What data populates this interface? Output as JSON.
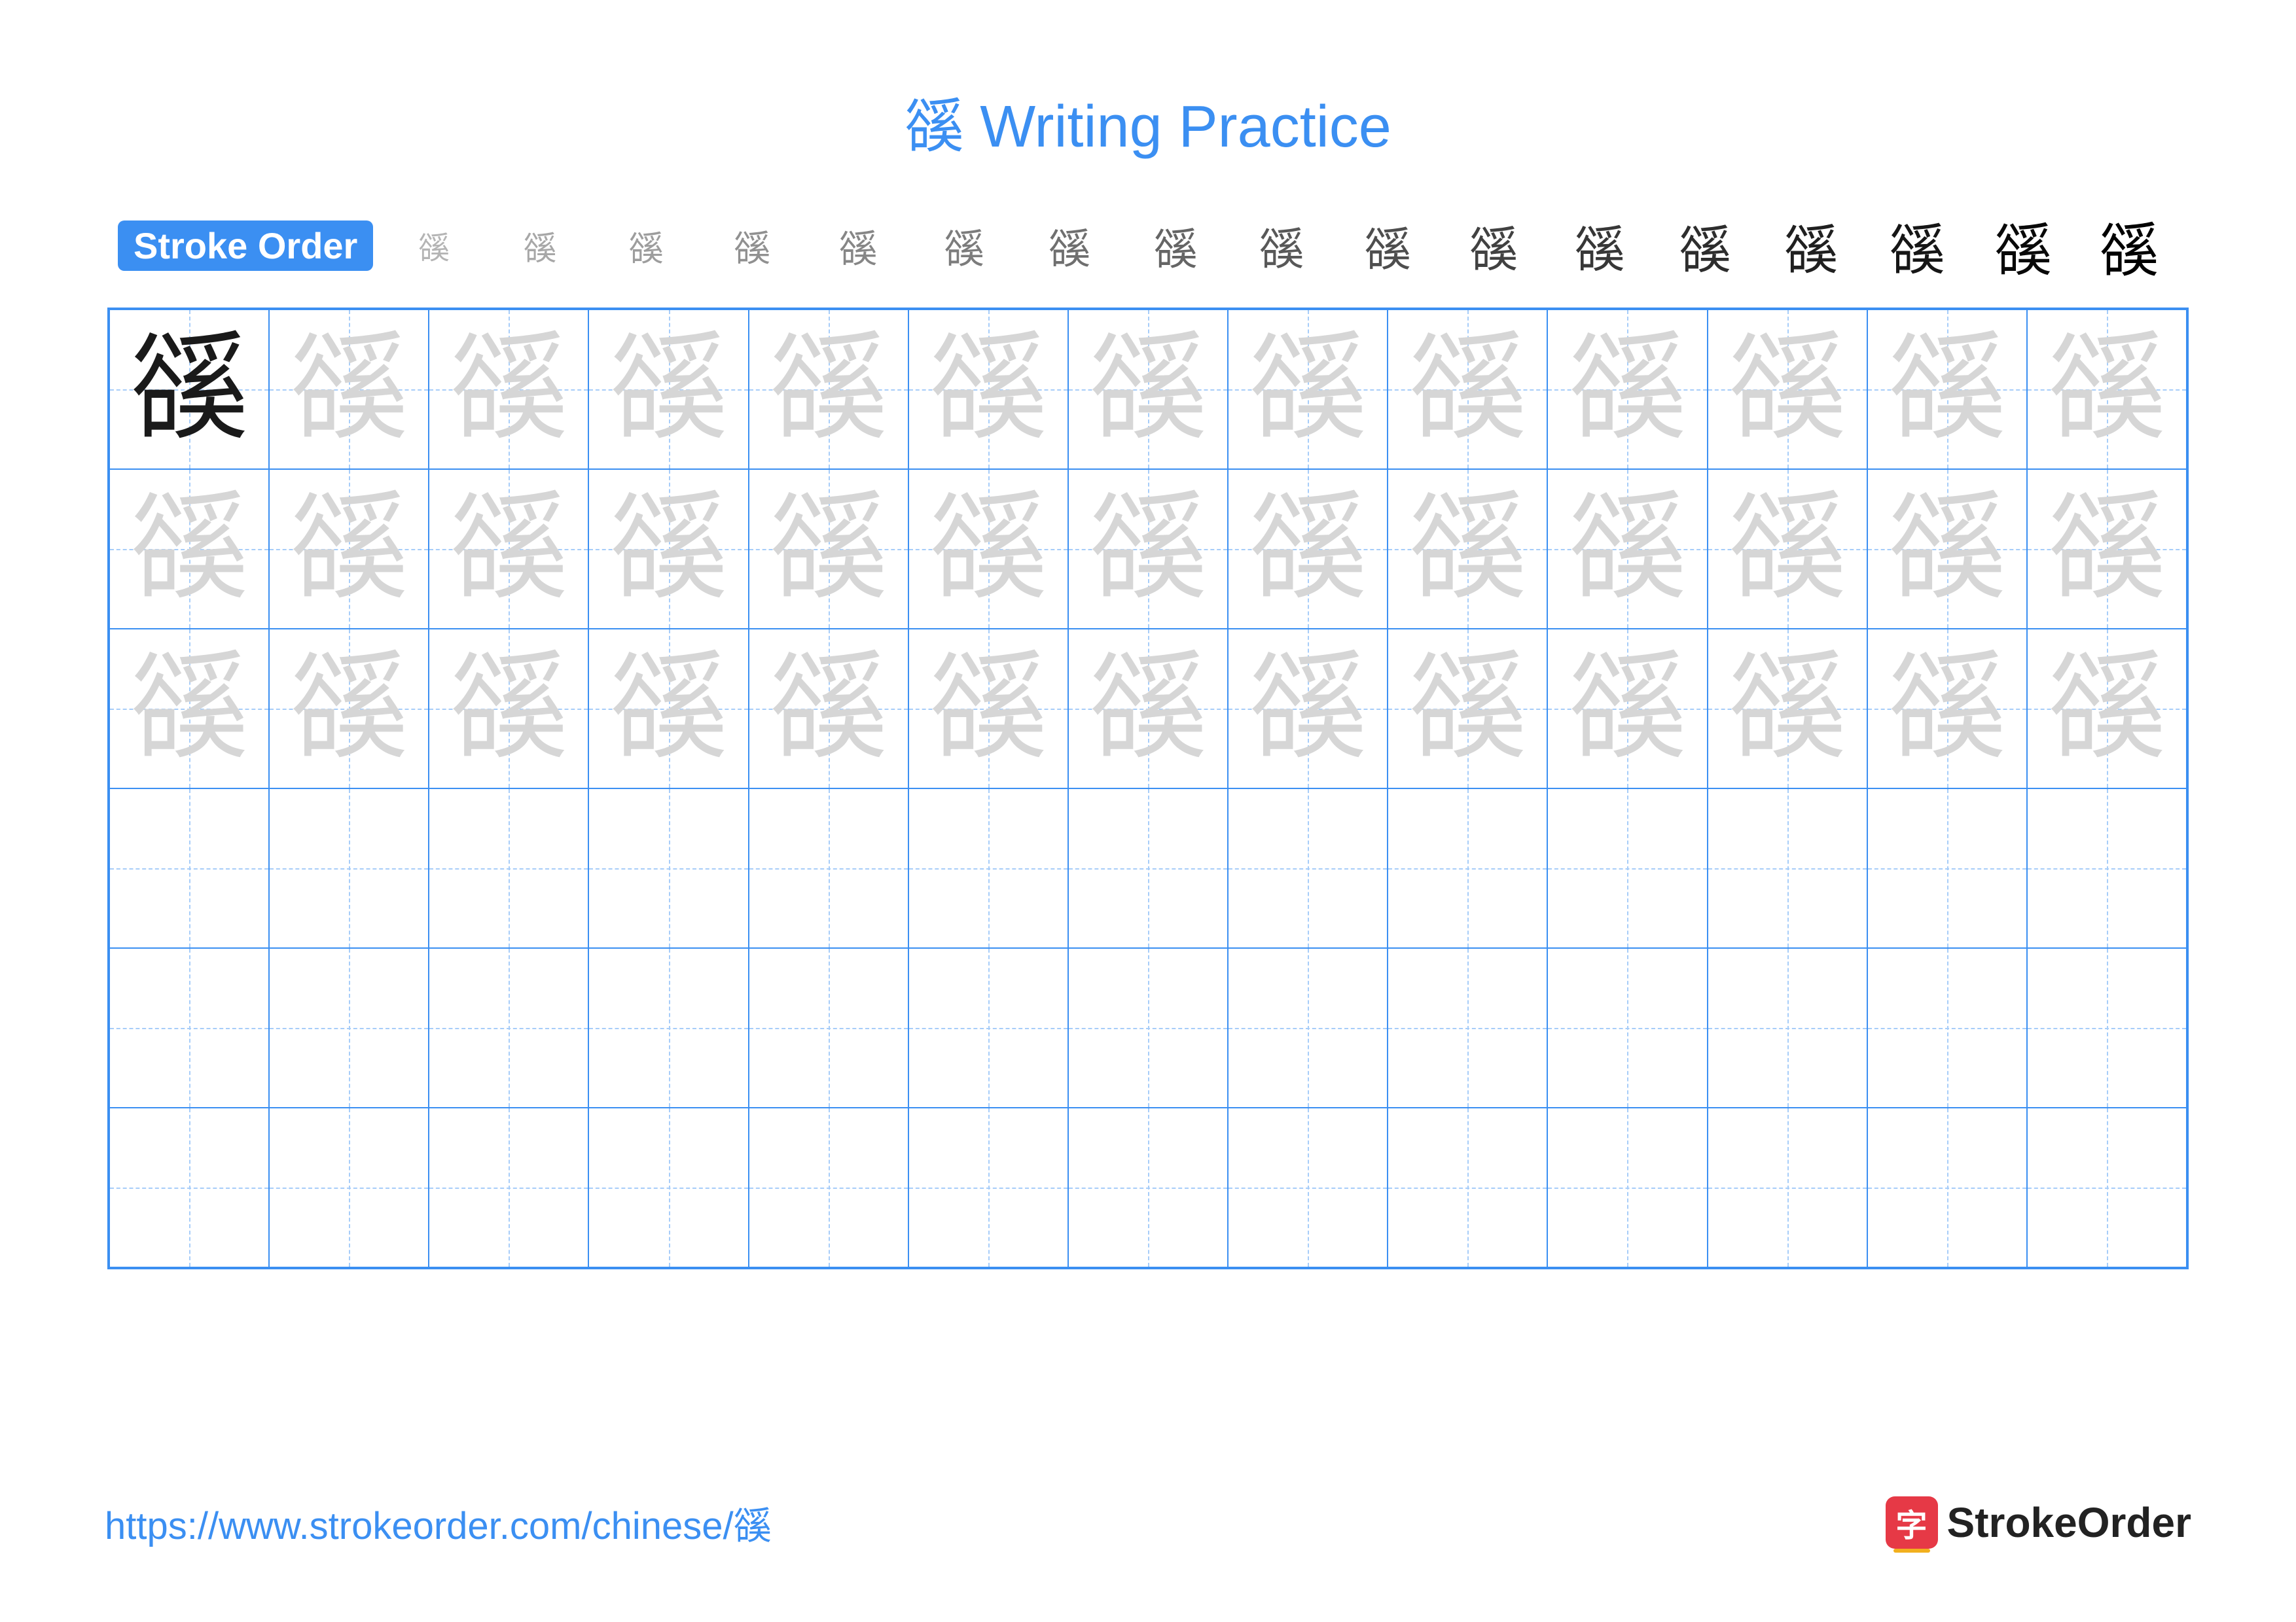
{
  "title": "豀 Writing Practice",
  "title_color": "#3b8ff2",
  "stroke_label": "Stroke Order",
  "stroke_label_bg": "#3b8ff2",
  "character": "豀",
  "stroke_steps_count": 17,
  "colors": {
    "border": "#3b8ff2",
    "dash": "#a7cdf9",
    "solid_char": "#1a1a1a",
    "faded_char": "#d6d6d6",
    "url": "#3b8ff2",
    "brand_icon_bg": "#e63946",
    "brand_icon_fg": "#ffffff",
    "brand_text": "#222222"
  },
  "grid": {
    "cols": 13,
    "rows": 6,
    "solid_cells": [
      [
        0,
        0
      ]
    ],
    "faded_rows": [
      0,
      1,
      2
    ]
  },
  "footer": {
    "url": "https://www.strokeorder.com/chinese/豀",
    "brand": "StrokeOrder",
    "logo_char": "字"
  }
}
